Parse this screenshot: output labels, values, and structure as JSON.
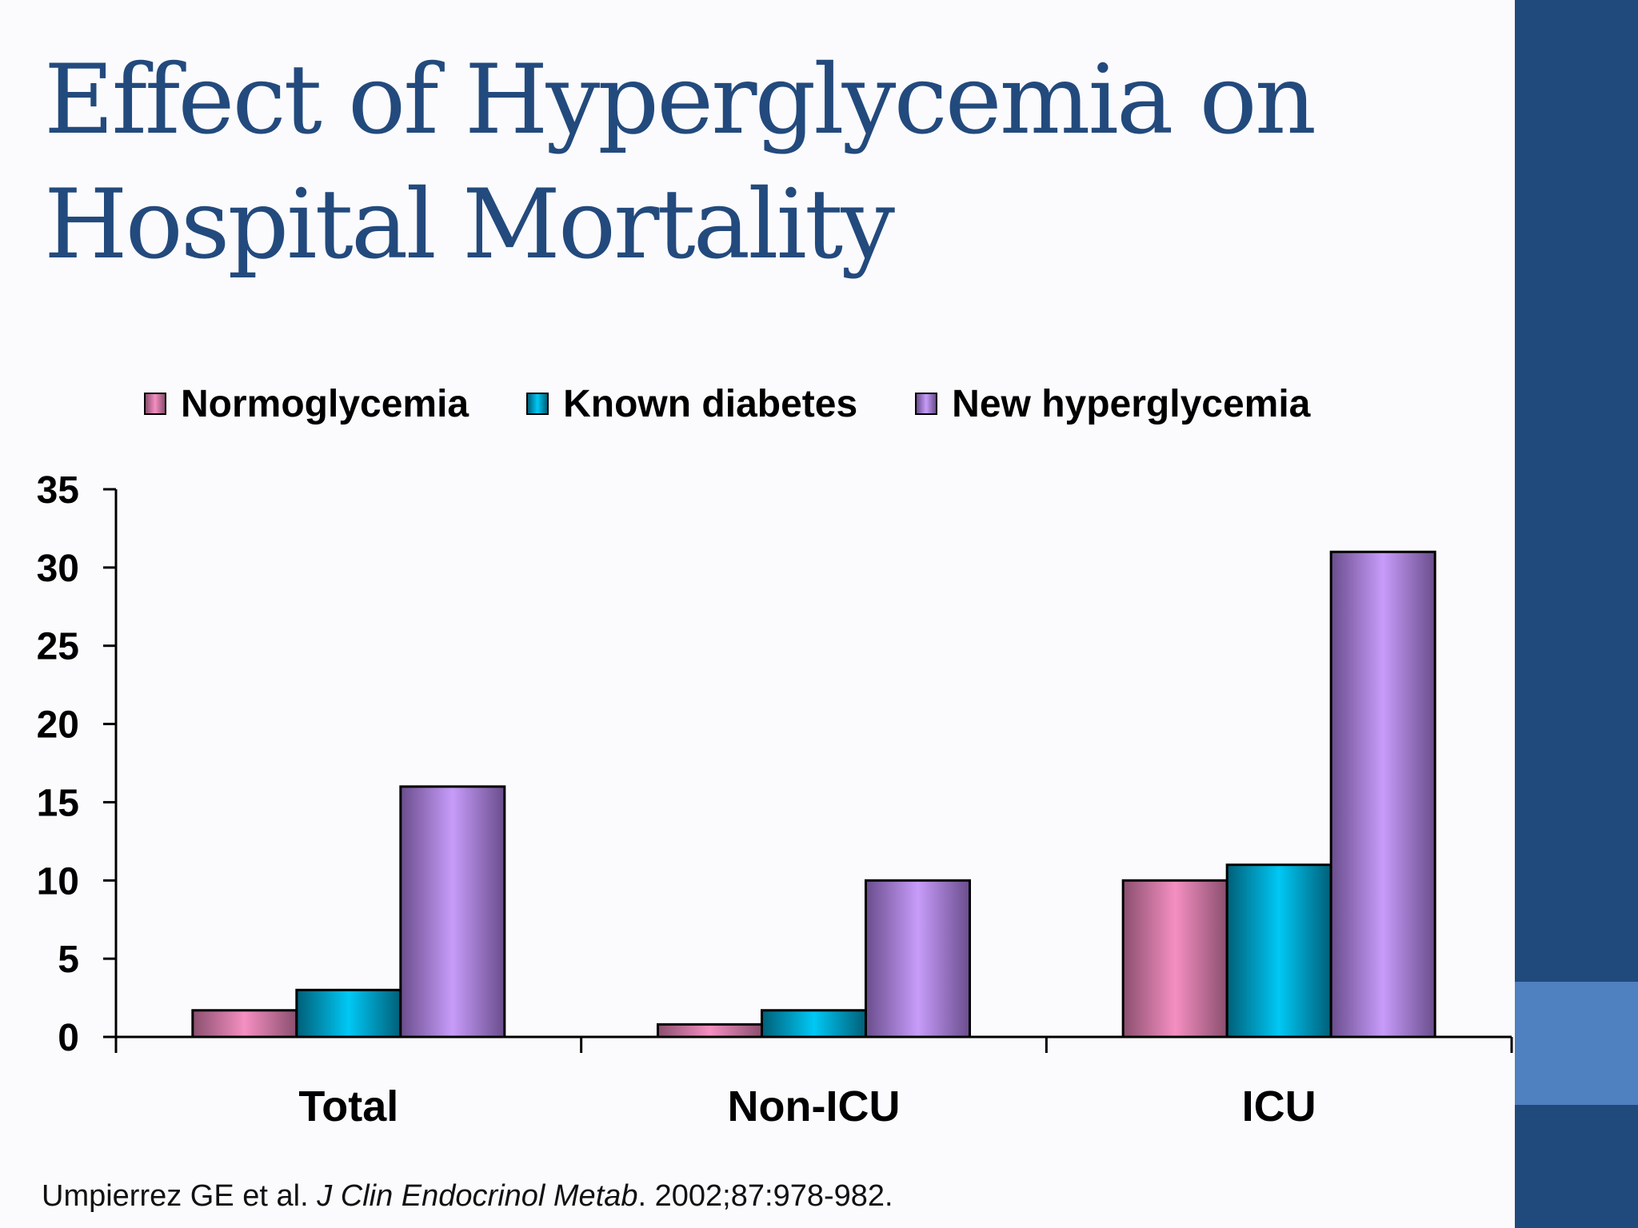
{
  "slide": {
    "title_line1": "Effect of Hyperglycemia on",
    "title_line2": "Hospital Mortality",
    "citation_authors": "Umpierrez GE et al. ",
    "citation_journal": "J Clin Endocrinol Metab",
    "citation_rest": ". 2002;87:978-982.",
    "colors": {
      "title": "#234a7d",
      "side_band": "#214a7c",
      "side_accent": "#4f80c0"
    }
  },
  "chart_data": {
    "type": "bar",
    "categories": [
      "Total",
      "Non-ICU",
      "ICU"
    ],
    "series": [
      {
        "name": "Normoglycemia",
        "values": [
          1.7,
          0.8,
          10
        ],
        "color": "#f58fc2",
        "dark": "#8a4f6e"
      },
      {
        "name": "Known diabetes",
        "values": [
          3,
          1.7,
          11
        ],
        "color": "#00c8f5",
        "dark": "#005f78"
      },
      {
        "name": "New hyperglycemia",
        "values": [
          16,
          10,
          31
        ],
        "color": "#c79cfa",
        "dark": "#6a4d8c"
      }
    ],
    "ylim": [
      0,
      35
    ],
    "yticks": [
      0,
      5,
      10,
      15,
      20,
      25,
      30,
      35
    ],
    "legend_position": "top",
    "grid": false
  }
}
